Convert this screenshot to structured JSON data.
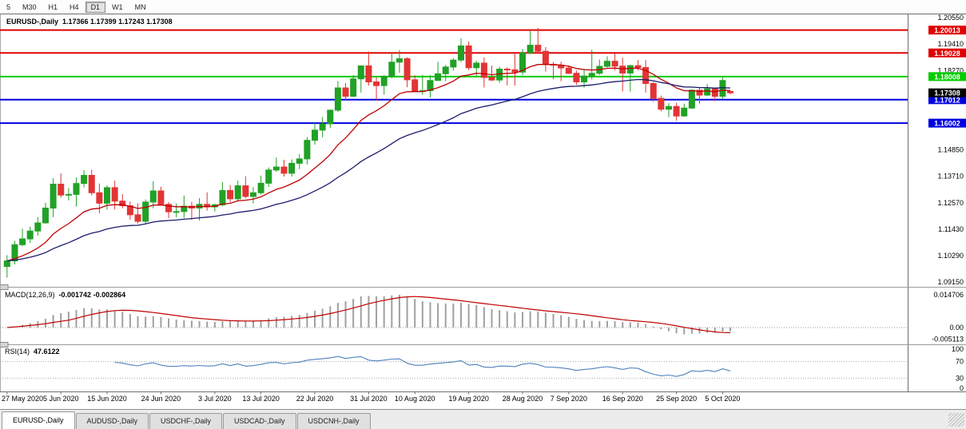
{
  "toolbar": {
    "buttons": [
      "5",
      "M30",
      "H1",
      "H4",
      "D1",
      "W1",
      "MN"
    ],
    "active": "D1"
  },
  "main_chart": {
    "title": "EURUSD-,Daily",
    "ohlc_text": "1.17366 1.17399 1.17243 1.17308"
  },
  "price_axis": {
    "labels": [
      "1.20550",
      "1.19410",
      "1.18270",
      "1.17130",
      "1.15990",
      "1.14850",
      "1.13710",
      "1.12570",
      "1.11430",
      "1.10290",
      "1.09150"
    ]
  },
  "hlines": [
    {
      "price": 1.20013,
      "label": "1.20013",
      "color": "#e00000"
    },
    {
      "price": 1.19028,
      "label": "1.19028",
      "color": "#e00000"
    },
    {
      "price": 1.18008,
      "label": "1.18008",
      "color": "#00cc00"
    },
    {
      "price": 1.17012,
      "label": "1.17012",
      "color": "#0000e0"
    },
    {
      "price": 1.16002,
      "label": "1.16002",
      "color": "#0000e0"
    }
  ],
  "last_price": {
    "price": 1.17308,
    "label": "1.17308",
    "color": "#000000"
  },
  "macd_panel": {
    "title": "MACD(12,26,9)",
    "values_text": "-0.001742 -0.002864",
    "axis_labels": [
      "0.014706",
      "0.00",
      "-0.005113"
    ]
  },
  "rsi_panel": {
    "title": "RSI(14)",
    "value_text": "47.6122",
    "axis_labels": [
      "100",
      "70",
      "30",
      "0"
    ],
    "levels": [
      70,
      30
    ]
  },
  "date_axis": {
    "labels": [
      "27 May 2020",
      "5 Jun 2020",
      "15 Jun 2020",
      "24 Jun 2020",
      "3 Jul 2020",
      "13 Jul 2020",
      "22 Jul 2020",
      "31 Jul 2020",
      "10 Aug 2020",
      "19 Aug 2020",
      "28 Aug 2020",
      "7 Sep 2020",
      "16 Sep 2020",
      "25 Sep 2020",
      "5 Oct 2020"
    ],
    "indices": [
      0,
      7,
      13,
      20,
      27,
      33,
      40,
      47,
      53,
      60,
      67,
      73,
      80,
      87,
      93
    ]
  },
  "tabs": {
    "items": [
      "EURUSD-,Daily",
      "AUDUSD-,Daily",
      "USDCHF-,Daily",
      "USDCAD-,Daily",
      "USDCNH-,Daily"
    ],
    "active": 0
  },
  "colors": {
    "up": "#21a126",
    "down": "#e23434",
    "ma_fast": "#c00000",
    "ma_slow": "#1c1c6e",
    "macd_hist": "#a0a0a0",
    "macd_signal": "#c00000",
    "rsi_line": "#4f81bd"
  },
  "chart_data": {
    "type": "candlestick",
    "symbol": "EURUSD-",
    "period": "Daily",
    "title": "EURUSD-,Daily 1.17366 1.17399 1.17243 1.17308",
    "y_axis_range": [
      1.0898,
      1.2069
    ],
    "moving_averages": [
      {
        "name": "fast-ma",
        "period": 13,
        "color": "#c00000"
      },
      {
        "name": "slow-ma",
        "period": 34,
        "color": "#1c1c6e"
      }
    ],
    "macd": {
      "params": "12,26,9",
      "main": -0.001742,
      "signal": -0.002864,
      "axis": [
        0.014706,
        0,
        -0.005113
      ]
    },
    "rsi": {
      "period": 14,
      "value": 47.6122,
      "axis": [
        100,
        70,
        30,
        0
      ],
      "levels": [
        70,
        30
      ]
    },
    "dates": [
      "2020-05-27",
      "2020-05-28",
      "2020-05-29",
      "2020-06-01",
      "2020-06-02",
      "2020-06-03",
      "2020-06-04",
      "2020-06-05",
      "2020-06-08",
      "2020-06-09",
      "2020-06-10",
      "2020-06-11",
      "2020-06-12",
      "2020-06-15",
      "2020-06-16",
      "2020-06-17",
      "2020-06-18",
      "2020-06-19",
      "2020-06-22",
      "2020-06-23",
      "2020-06-24",
      "2020-06-25",
      "2020-06-26",
      "2020-06-29",
      "2020-06-30",
      "2020-07-01",
      "2020-07-02",
      "2020-07-03",
      "2020-07-06",
      "2020-07-07",
      "2020-07-08",
      "2020-07-09",
      "2020-07-10",
      "2020-07-13",
      "2020-07-14",
      "2020-07-15",
      "2020-07-16",
      "2020-07-17",
      "2020-07-20",
      "2020-07-21",
      "2020-07-22",
      "2020-07-23",
      "2020-07-24",
      "2020-07-27",
      "2020-07-28",
      "2020-07-29",
      "2020-07-30",
      "2020-07-31",
      "2020-08-03",
      "2020-08-04",
      "2020-08-05",
      "2020-08-06",
      "2020-08-07",
      "2020-08-10",
      "2020-08-11",
      "2020-08-12",
      "2020-08-13",
      "2020-08-14",
      "2020-08-17",
      "2020-08-18",
      "2020-08-19",
      "2020-08-20",
      "2020-08-21",
      "2020-08-24",
      "2020-08-25",
      "2020-08-26",
      "2020-08-27",
      "2020-08-28",
      "2020-08-31",
      "2020-09-01",
      "2020-09-02",
      "2020-09-03",
      "2020-09-04",
      "2020-09-07",
      "2020-09-08",
      "2020-09-09",
      "2020-09-10",
      "2020-09-11",
      "2020-09-14",
      "2020-09-15",
      "2020-09-16",
      "2020-09-17",
      "2020-09-18",
      "2020-09-21",
      "2020-09-22",
      "2020-09-23",
      "2020-09-24",
      "2020-09-25",
      "2020-09-28",
      "2020-09-29",
      "2020-09-30",
      "2020-10-01",
      "2020-10-02",
      "2020-10-05",
      "2020-10-06"
    ],
    "ohlc": [
      [
        1.0982,
        1.1031,
        1.0934,
        1.1006
      ],
      [
        1.1006,
        1.1093,
        1.0991,
        1.1076
      ],
      [
        1.1076,
        1.1145,
        1.1069,
        1.1101
      ],
      [
        1.1101,
        1.1154,
        1.1084,
        1.1135
      ],
      [
        1.1135,
        1.1195,
        1.1115,
        1.117
      ],
      [
        1.117,
        1.1257,
        1.1167,
        1.1234
      ],
      [
        1.1234,
        1.1362,
        1.1195,
        1.1337
      ],
      [
        1.1337,
        1.1384,
        1.1279,
        1.129
      ],
      [
        1.129,
        1.132,
        1.1267,
        1.1293
      ],
      [
        1.1293,
        1.1366,
        1.1241,
        1.134
      ],
      [
        1.134,
        1.1398,
        1.1323,
        1.1375
      ],
      [
        1.1375,
        1.14,
        1.1289,
        1.13
      ],
      [
        1.13,
        1.134,
        1.1212,
        1.1255
      ],
      [
        1.1255,
        1.1333,
        1.1227,
        1.1322
      ],
      [
        1.1322,
        1.1352,
        1.1228,
        1.1264
      ],
      [
        1.1264,
        1.1294,
        1.1233,
        1.1244
      ],
      [
        1.1244,
        1.1262,
        1.1184,
        1.1205
      ],
      [
        1.1205,
        1.1255,
        1.1168,
        1.1177
      ],
      [
        1.1177,
        1.1271,
        1.1168,
        1.126
      ],
      [
        1.126,
        1.1349,
        1.1233,
        1.1308
      ],
      [
        1.1308,
        1.1326,
        1.1245,
        1.125
      ],
      [
        1.125,
        1.126,
        1.119,
        1.1218
      ],
      [
        1.1218,
        1.1254,
        1.1194,
        1.1219
      ],
      [
        1.1219,
        1.1288,
        1.1192,
        1.1242
      ],
      [
        1.1242,
        1.1261,
        1.1184,
        1.1234
      ],
      [
        1.1234,
        1.1277,
        1.118,
        1.125
      ],
      [
        1.125,
        1.1302,
        1.1223,
        1.1239
      ],
      [
        1.1239,
        1.1254,
        1.1219,
        1.1248
      ],
      [
        1.1248,
        1.1346,
        1.1241,
        1.131
      ],
      [
        1.131,
        1.1333,
        1.1259,
        1.1274
      ],
      [
        1.1274,
        1.1352,
        1.1266,
        1.133
      ],
      [
        1.133,
        1.1371,
        1.1276,
        1.1284
      ],
      [
        1.1284,
        1.1325,
        1.1254,
        1.13
      ],
      [
        1.13,
        1.1374,
        1.1292,
        1.1341
      ],
      [
        1.1341,
        1.1409,
        1.1325,
        1.1398
      ],
      [
        1.1398,
        1.1452,
        1.139,
        1.1411
      ],
      [
        1.1411,
        1.1442,
        1.137,
        1.1384
      ],
      [
        1.1384,
        1.1444,
        1.1369,
        1.1427
      ],
      [
        1.1427,
        1.1467,
        1.1402,
        1.1446
      ],
      [
        1.1446,
        1.154,
        1.1422,
        1.1526
      ],
      [
        1.1526,
        1.1601,
        1.1507,
        1.157
      ],
      [
        1.157,
        1.1627,
        1.1539,
        1.1597
      ],
      [
        1.1597,
        1.1658,
        1.158,
        1.1656
      ],
      [
        1.1656,
        1.1781,
        1.1648,
        1.1752
      ],
      [
        1.1752,
        1.1773,
        1.17,
        1.1716
      ],
      [
        1.1716,
        1.1807,
        1.1713,
        1.1791
      ],
      [
        1.1791,
        1.1848,
        1.1732,
        1.1847
      ],
      [
        1.1847,
        1.1909,
        1.1762,
        1.1778
      ],
      [
        1.1778,
        1.1798,
        1.1696,
        1.1762
      ],
      [
        1.1762,
        1.1807,
        1.1723,
        1.1802
      ],
      [
        1.1802,
        1.1904,
        1.1794,
        1.1863
      ],
      [
        1.1863,
        1.1916,
        1.1817,
        1.1878
      ],
      [
        1.1878,
        1.1884,
        1.1755,
        1.1787
      ],
      [
        1.1787,
        1.1806,
        1.1737,
        1.1738
      ],
      [
        1.1738,
        1.1808,
        1.1722,
        1.174
      ],
      [
        1.174,
        1.1808,
        1.1711,
        1.1784
      ],
      [
        1.1784,
        1.1864,
        1.1782,
        1.1813
      ],
      [
        1.1813,
        1.1851,
        1.1781,
        1.1842
      ],
      [
        1.1842,
        1.1881,
        1.1826,
        1.1872
      ],
      [
        1.1872,
        1.1966,
        1.1863,
        1.1933
      ],
      [
        1.1933,
        1.1952,
        1.1829,
        1.1839
      ],
      [
        1.1839,
        1.1869,
        1.1803,
        1.1859
      ],
      [
        1.1859,
        1.1883,
        1.1754,
        1.1797
      ],
      [
        1.1797,
        1.1848,
        1.1782,
        1.1786
      ],
      [
        1.1786,
        1.1843,
        1.1774,
        1.1833
      ],
      [
        1.1833,
        1.1841,
        1.1763,
        1.183
      ],
      [
        1.183,
        1.1899,
        1.1762,
        1.182
      ],
      [
        1.182,
        1.192,
        1.1807,
        1.1903
      ],
      [
        1.1903,
        1.1997,
        1.1898,
        1.1936
      ],
      [
        1.1936,
        1.2011,
        1.1901,
        1.191
      ],
      [
        1.191,
        1.1928,
        1.1822,
        1.1854
      ],
      [
        1.1854,
        1.1864,
        1.1789,
        1.185
      ],
      [
        1.185,
        1.1865,
        1.1781,
        1.1838
      ],
      [
        1.1838,
        1.1849,
        1.1812,
        1.1815
      ],
      [
        1.1815,
        1.1827,
        1.1765,
        1.1778
      ],
      [
        1.1778,
        1.1834,
        1.1753,
        1.1803
      ],
      [
        1.1803,
        1.1917,
        1.1788,
        1.1815
      ],
      [
        1.1815,
        1.1874,
        1.1808,
        1.1845
      ],
      [
        1.1845,
        1.1888,
        1.1839,
        1.1867
      ],
      [
        1.1867,
        1.19,
        1.1827,
        1.1846
      ],
      [
        1.1846,
        1.1882,
        1.1737,
        1.1816
      ],
      [
        1.1816,
        1.1852,
        1.1736,
        1.1848
      ],
      [
        1.1848,
        1.1872,
        1.1827,
        1.184
      ],
      [
        1.184,
        1.1872,
        1.1732,
        1.1771
      ],
      [
        1.1771,
        1.1778,
        1.1692,
        1.1707
      ],
      [
        1.1707,
        1.1719,
        1.1651,
        1.166
      ],
      [
        1.166,
        1.1686,
        1.1626,
        1.1672
      ],
      [
        1.1672,
        1.1688,
        1.1611,
        1.1631
      ],
      [
        1.1631,
        1.1684,
        1.1628,
        1.1665
      ],
      [
        1.1665,
        1.1746,
        1.1661,
        1.1742
      ],
      [
        1.1742,
        1.1755,
        1.1684,
        1.1721
      ],
      [
        1.1721,
        1.1769,
        1.1717,
        1.1748
      ],
      [
        1.1748,
        1.1752,
        1.1695,
        1.1716
      ],
      [
        1.1716,
        1.1798,
        1.1705,
        1.1784
      ],
      [
        1.17366,
        1.17399,
        1.17243,
        1.17308
      ]
    ]
  }
}
